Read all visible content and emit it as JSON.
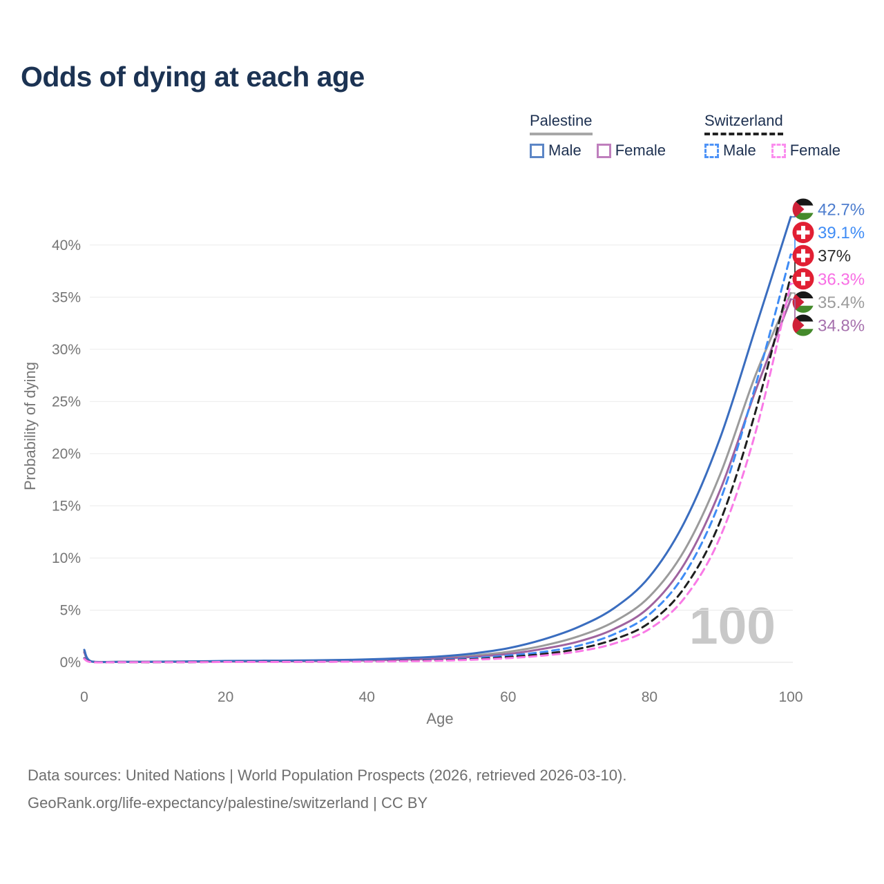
{
  "title": "Odds of dying at each age",
  "watermark": "100",
  "footer": {
    "line1": "Data sources: United Nations | World Population Prospects (2026, retrieved 2026-03-10).",
    "line2": "GeoRank.org/life-expectancy/palestine/switzerland | CC BY"
  },
  "legend": {
    "groups": [
      {
        "name": "Palestine",
        "line_style": "solid",
        "underline_color": "#a7a7a7",
        "items": [
          {
            "label": "Male",
            "color": "#5c86c6"
          },
          {
            "label": "Female",
            "color": "#bf7fbd"
          }
        ]
      },
      {
        "name": "Switzerland",
        "line_style": "dashed",
        "underline_color": "#222222",
        "items": [
          {
            "label": "Male",
            "color": "#4e93f7"
          },
          {
            "label": "Female",
            "color": "#fb8dee"
          }
        ]
      }
    ]
  },
  "chart_data": {
    "type": "line",
    "title": "Odds of dying at each age",
    "xlabel": "Age",
    "ylabel": "Probability of dying",
    "xlim": [
      0,
      100
    ],
    "ylim": [
      0,
      43
    ],
    "xticks": [
      0,
      20,
      40,
      60,
      80,
      100
    ],
    "yticks": [
      0,
      5,
      10,
      15,
      20,
      25,
      30,
      35,
      40
    ],
    "ytick_suffix": "%",
    "grid": "horizontal-only",
    "x": [
      0,
      1,
      5,
      10,
      15,
      20,
      25,
      30,
      35,
      40,
      45,
      50,
      55,
      60,
      65,
      70,
      75,
      80,
      85,
      90,
      95,
      100
    ],
    "series": [
      {
        "id": "palestine-both",
        "name": "Palestine Both sexes",
        "country": "Palestine",
        "sex": "both",
        "flag": "palestine",
        "line_style": "solid",
        "color": "#9b9b9b",
        "label_color": "#9b9b9b",
        "end_label": "35.4%",
        "final_value": 35.4,
        "values": [
          1.05,
          0.08,
          0.045,
          0.05,
          0.07,
          0.1,
          0.12,
          0.14,
          0.17,
          0.23,
          0.32,
          0.42,
          0.65,
          1.0,
          1.6,
          2.5,
          3.9,
          6.3,
          10.8,
          18.0,
          27.5,
          35.4
        ]
      },
      {
        "id": "palestine-female",
        "name": "Palestine Female",
        "country": "Palestine",
        "sex": "female",
        "flag": "palestine",
        "line_style": "solid",
        "color": "#9f639f",
        "label_color": "#a671ad",
        "end_label": "34.8%",
        "final_value": 34.8,
        "values": [
          0.95,
          0.07,
          0.04,
          0.04,
          0.05,
          0.07,
          0.08,
          0.1,
          0.13,
          0.18,
          0.26,
          0.35,
          0.52,
          0.8,
          1.3,
          2.0,
          3.2,
          5.3,
          9.5,
          16.5,
          26.0,
          34.8
        ]
      },
      {
        "id": "palestine-male",
        "name": "Palestine Male",
        "country": "Palestine",
        "sex": "male",
        "flag": "palestine",
        "line_style": "solid",
        "color": "#3a6dbf",
        "label_color": "#4d7dce",
        "end_label": "42.7%",
        "final_value": 42.7,
        "values": [
          1.2,
          0.09,
          0.05,
          0.06,
          0.09,
          0.13,
          0.15,
          0.17,
          0.21,
          0.28,
          0.4,
          0.55,
          0.85,
          1.35,
          2.2,
          3.4,
          5.2,
          8.2,
          13.5,
          21.5,
          32.0,
          42.7
        ]
      },
      {
        "id": "switzerland-male",
        "name": "Switzerland Male",
        "country": "Switzerland",
        "sex": "male",
        "flag": "switzerland",
        "line_style": "dashed",
        "color": "#3f8cf5",
        "label_color": "#3f8cf5",
        "end_label": "39.1%",
        "final_value": 39.1,
        "values": [
          0.4,
          0.03,
          0.01,
          0.01,
          0.02,
          0.05,
          0.06,
          0.06,
          0.08,
          0.1,
          0.16,
          0.25,
          0.4,
          0.65,
          1.0,
          1.6,
          2.7,
          4.6,
          8.5,
          15.5,
          26.5,
          39.1
        ]
      },
      {
        "id": "switzerland-both",
        "name": "Switzerland Both sexes",
        "country": "Switzerland",
        "sex": "both",
        "flag": "switzerland",
        "line_style": "dashed",
        "color": "#1f1f1f",
        "label_color": "#2e2e2e",
        "end_label": "37%",
        "final_value": 37.0,
        "values": [
          0.37,
          0.03,
          0.01,
          0.01,
          0.02,
          0.04,
          0.05,
          0.05,
          0.06,
          0.08,
          0.13,
          0.2,
          0.3,
          0.5,
          0.8,
          1.3,
          2.2,
          3.8,
          7.2,
          13.5,
          24.0,
          37.0
        ]
      },
      {
        "id": "switzerland-female",
        "name": "Switzerland Female",
        "country": "Switzerland",
        "sex": "female",
        "flag": "switzerland",
        "line_style": "dashed",
        "color": "#f97ae6",
        "label_color": "#f86ee4",
        "end_label": "36.3%",
        "final_value": 36.3,
        "values": [
          0.33,
          0.02,
          0.01,
          0.01,
          0.01,
          0.03,
          0.03,
          0.04,
          0.05,
          0.07,
          0.1,
          0.15,
          0.25,
          0.4,
          0.65,
          1.05,
          1.8,
          3.2,
          6.2,
          12.0,
          22.0,
          36.3
        ]
      }
    ]
  }
}
